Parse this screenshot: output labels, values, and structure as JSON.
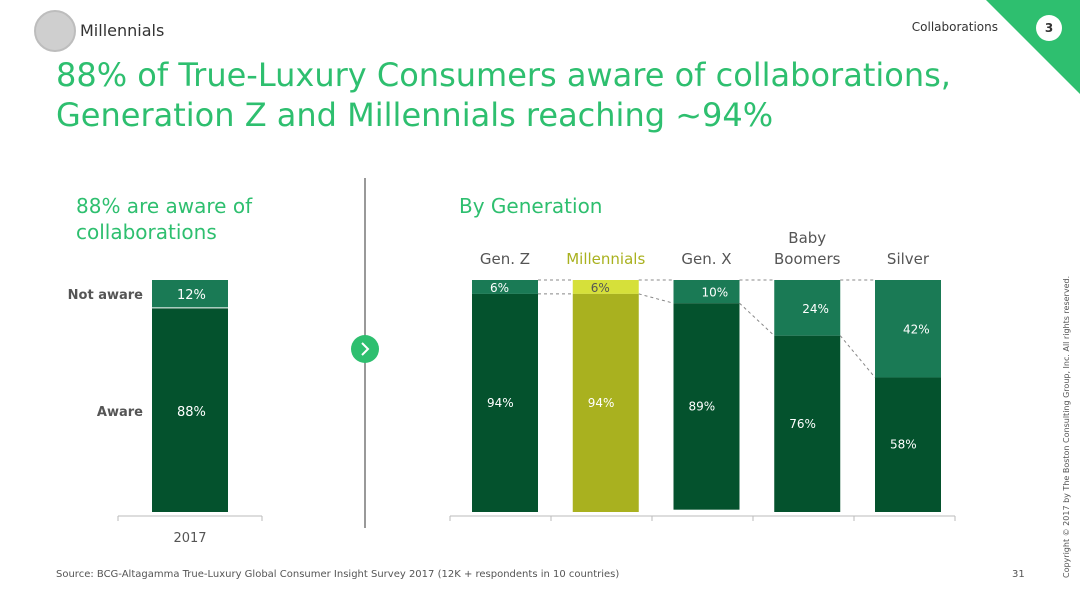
{
  "header": {
    "section_label": "Millennials",
    "topic": "Collaborations",
    "badge": "3",
    "title_line1": "88% of True-Luxury Consumers aware of collaborations,",
    "title_line2": "Generation Z and Millennials reaching ~94%"
  },
  "left_panel": {
    "heading_line1": "88% are aware of",
    "heading_line2": "collaborations"
  },
  "right_panel": {
    "heading": "By Generation"
  },
  "chart_data": [
    {
      "type": "bar",
      "stacked": true,
      "categories": [
        "2017"
      ],
      "row_labels": [
        "Not aware",
        "Aware"
      ],
      "series": [
        {
          "name": "Aware",
          "values": [
            88
          ],
          "labels": [
            "88%"
          ],
          "color": "#04522d"
        },
        {
          "name": "Not aware",
          "values": [
            12
          ],
          "labels": [
            "12%"
          ],
          "color": "#1a7a55"
        }
      ],
      "ylim": [
        0,
        100
      ]
    },
    {
      "type": "bar",
      "stacked": true,
      "categories": [
        "Gen. Z",
        "Millennials",
        "Gen. X",
        "Baby Boomers",
        "Silver"
      ],
      "series": [
        {
          "name": "Aware",
          "values": [
            94,
            94,
            89,
            76,
            58
          ],
          "labels": [
            "94%",
            "94%",
            "89%",
            "76%",
            "58%"
          ],
          "colors": [
            "#04522d",
            "#a9b11f",
            "#04522d",
            "#04522d",
            "#04522d"
          ]
        },
        {
          "name": "Not aware",
          "values": [
            6,
            6,
            10,
            24,
            42
          ],
          "labels": [
            "6%",
            "6%",
            "10%",
            "24%",
            "42%"
          ],
          "colors": [
            "#1a7a55",
            "#d6e03a",
            "#1a7a55",
            "#1a7a55",
            "#1a7a55"
          ]
        }
      ],
      "highlight_category": "Millennials",
      "highlight_color": "#a9b11f",
      "ylim": [
        0,
        100
      ]
    }
  ],
  "footer": {
    "source": "Source: BCG-Altagamma True-Luxury Global Consumer Insight Survey 2017 (12K + respondents in 10 countries)",
    "page": "31",
    "copyright": "Copyright © 2017 by The Boston Consulting Group, Inc. All rights reserved."
  }
}
